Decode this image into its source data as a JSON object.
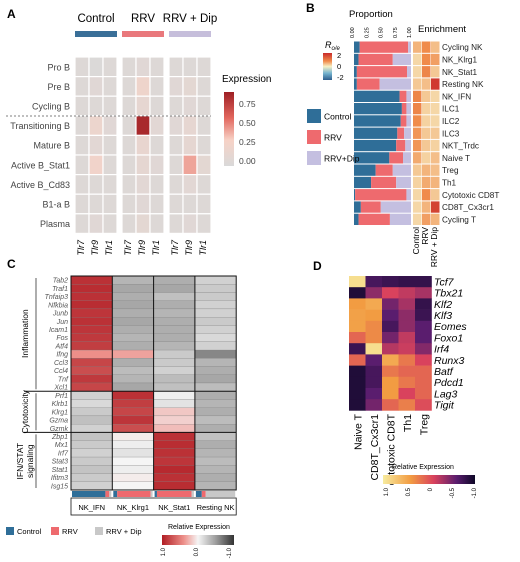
{
  "panels": {
    "A": {
      "letter": "A",
      "groups": [
        "Control",
        "RRV",
        "RRV + Dip"
      ],
      "group_colors": [
        "#3a6f98",
        "#e9787c",
        "#c6bedb"
      ],
      "rows": [
        "Pro B",
        "Pre B",
        "Cycling B",
        "Transitioning B",
        "Mature B",
        "Active B_Stat1",
        "Active B_Cd83",
        "B1-a B",
        "Plasma"
      ],
      "genes": [
        "Tlr7",
        "Tlr9",
        "Tlr1"
      ],
      "legend_title": "Expression",
      "legend_ticks": [
        "0.75",
        "0.50",
        "0.25",
        "0.00"
      ]
    },
    "B": {
      "letter": "B",
      "header_left": "Proportion",
      "header_right": "Enrichment",
      "prop_ticks": [
        "0.00",
        "0.25",
        "0.50",
        "0.75",
        "1.00"
      ],
      "roe_title": "Roe",
      "roe_ticks": [
        "2",
        "0",
        "-2"
      ],
      "legend": [
        {
          "label": "Control",
          "color": "#2f6e98"
        },
        {
          "label": "RRV",
          "color": "#ee6a6e"
        },
        {
          "label": "RRV+Dip",
          "color": "#c4bfe0"
        }
      ],
      "rows": [
        "Cycling NK",
        "NK_Klrg1",
        "NK_Stat1",
        "Resting NK",
        "NK_IFN",
        "ILC1",
        "ILC2",
        "ILC3",
        "NKT_Trdc",
        "Naive T",
        "Treg",
        "Th1",
        "Cytotoxic  CD8T",
        "CD8T_Cx3cr1",
        "Cycling T"
      ],
      "cols": [
        "Control",
        "RRV",
        "RRV + Dip"
      ]
    },
    "C": {
      "letter": "C",
      "genes": [
        "Tab2",
        "Traf1",
        "Tnfaip3",
        "Nfkbia",
        "Junb",
        "Jun",
        "Icam1",
        "Fos",
        "Atf4",
        "Ifng",
        "Ccl3",
        "Ccl4",
        "Tnf",
        "Xcl1",
        "Prf1",
        "Klrb1",
        "Klrg1",
        "Gzma",
        "Gzmk",
        "Zbp1",
        "Mx1",
        "Irf7",
        "Stat3",
        "Stat1",
        "Ifitm3",
        "Isg15"
      ],
      "categories": [
        "Inflammation",
        "Cytotoxicity",
        "IFN/STAT\nsignaling"
      ],
      "clusters": [
        "NK_IFN",
        "NK_Klrg1",
        "NK_Stat1",
        "Resting NK"
      ],
      "legend": [
        {
          "label": "Control",
          "color": "#2f6e98"
        },
        {
          "label": "RRV",
          "color": "#ee6a6e"
        },
        {
          "label": "RRV + Dip",
          "color": "#c8c8c8"
        }
      ],
      "scale_title": "Relative Expression",
      "scale_ticks": [
        "1.0",
        "0.0",
        "-1.0"
      ]
    },
    "D": {
      "letter": "D",
      "genes": [
        "Tcf7",
        "Tbx21",
        "Klf2",
        "Klf3",
        "Eomes",
        "Foxo1",
        "Irf4",
        "Runx3",
        "Batf",
        "Pdcd1",
        "Lag3",
        "Tigit"
      ],
      "clusters": [
        "Naive T",
        "CD8T_Cx3cr1",
        "cytotoxic CD8T",
        "Th1",
        "Treg"
      ],
      "scale_title": "Relative Expression",
      "scale_ticks": [
        "1.0",
        "0.5",
        "0",
        "-0.5",
        "-1.0"
      ]
    }
  }
}
